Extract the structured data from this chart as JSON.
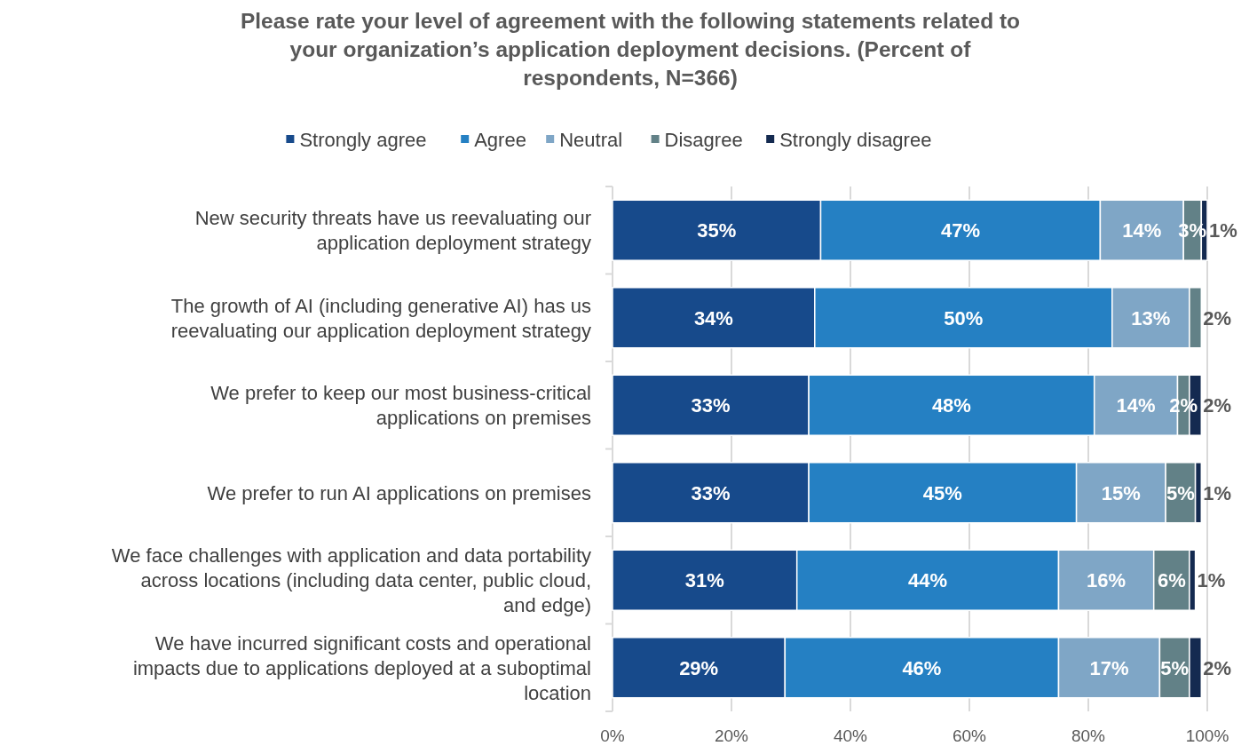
{
  "chart_data": {
    "type": "bar",
    "orientation": "horizontal",
    "stacked": true,
    "title": "Please rate your level of agreement with the following statements related to your organization’s application deployment decisions. (Percent of respondents, N=366)",
    "categories": [
      "New security threats have us reevaluating our application deployment strategy",
      "The growth of AI (including generative AI) has us reevaluating our application deployment strategy",
      "We prefer to keep our most business-critical applications on premises",
      "We prefer to run AI applications on premises",
      "We face challenges with application and data portability across locations (including data center, public cloud, and edge)",
      "We have incurred significant costs and operational impacts due to applications deployed at a suboptimal location"
    ],
    "series": [
      {
        "name": "Strongly agree",
        "color": "#174a8b",
        "values": [
          35,
          34,
          33,
          33,
          31,
          29
        ],
        "value_labels": [
          "35%",
          "34%",
          "33%",
          "33%",
          "31%",
          "29%"
        ]
      },
      {
        "name": "Agree",
        "color": "#2580c3",
        "values": [
          47,
          50,
          48,
          45,
          44,
          46
        ],
        "value_labels": [
          "47%",
          "50%",
          "48%",
          "45%",
          "44%",
          "46%"
        ]
      },
      {
        "name": "Neutral",
        "color": "#7fa6c6",
        "values": [
          14,
          13,
          14,
          15,
          16,
          17
        ],
        "value_labels": [
          "14%",
          "13%",
          "14%",
          "15%",
          "16%",
          "17%"
        ]
      },
      {
        "name": "Disagree",
        "color": "#628187",
        "values": [
          3,
          2,
          2,
          5,
          6,
          5
        ],
        "value_labels": [
          "3%",
          "2%",
          "2%",
          "5%",
          "6%",
          "5%"
        ]
      },
      {
        "name": "Strongly disagree",
        "color": "#142a50",
        "values": [
          1,
          0,
          2,
          1,
          1,
          2
        ],
        "value_labels": [
          "1%",
          null,
          "2%",
          "1%",
          "1%",
          "2%"
        ]
      }
    ],
    "xlim": [
      0,
      100
    ],
    "xticks": [
      {
        "value": 0,
        "label": "0%"
      },
      {
        "value": 20,
        "label": "20%"
      },
      {
        "value": 40,
        "label": "40%"
      },
      {
        "value": 60,
        "label": "60%"
      },
      {
        "value": 80,
        "label": "80%"
      },
      {
        "value": 100,
        "label": "100%"
      }
    ],
    "grid": "x",
    "legend": "top"
  }
}
